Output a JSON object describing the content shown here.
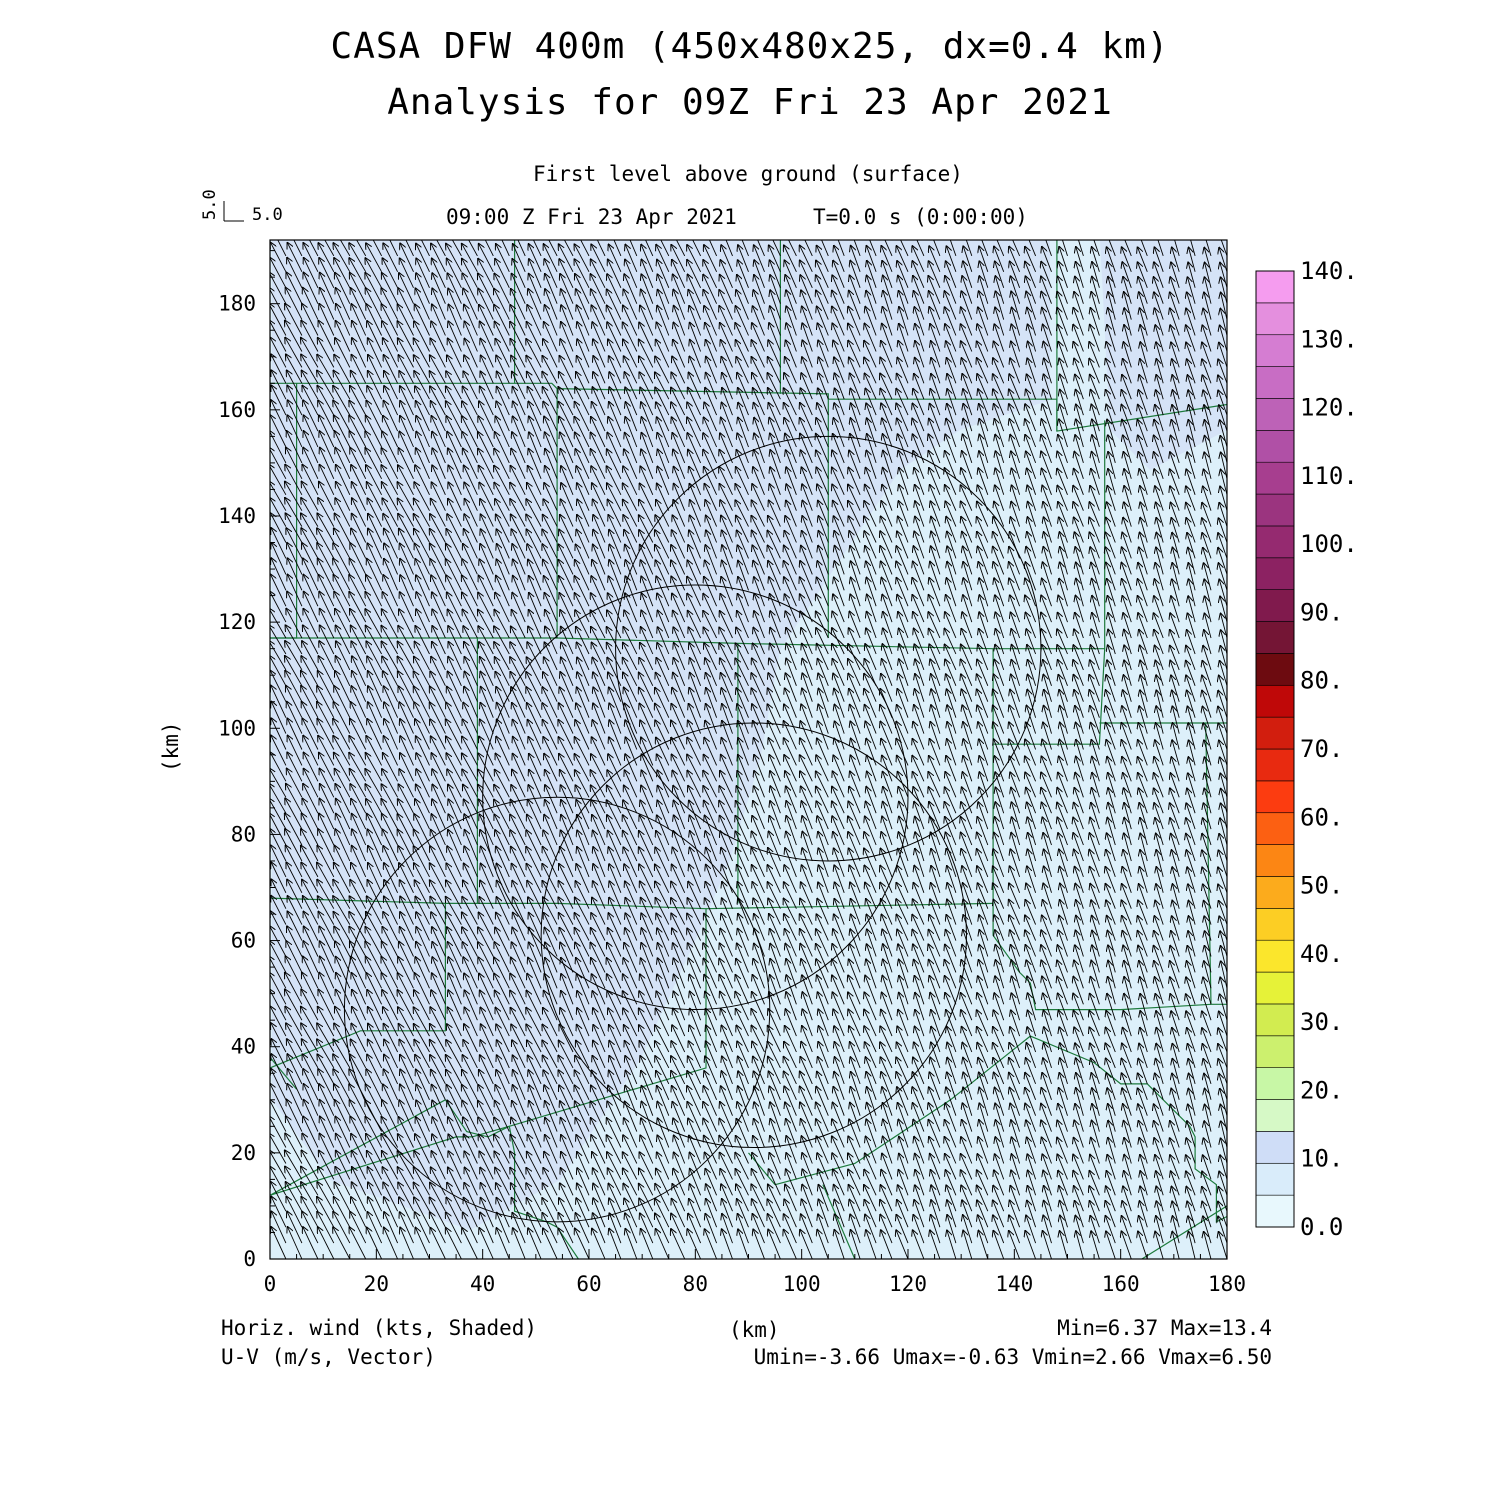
{
  "header": {
    "title_line1": "CASA DFW 400m (450x480x25, dx=0.4 km)",
    "title_line2": "Analysis for 09Z Fri 23 Apr 2021",
    "level": "First level above ground (surface)",
    "valid_time": "09:00 Z Fri 23 Apr 2021",
    "model_time": "T=0.0 s (0:00:00)"
  },
  "ref_vector": {
    "u": "5.0",
    "v": "5.0"
  },
  "footer": {
    "left_line1": "Horiz. wind (kts, Shaded)",
    "left_line2": "U-V (m/s, Vector)",
    "center": "(km)",
    "right_line1": "Min=6.37 Max=13.4",
    "right_line2": "Umin=-3.66 Umax=-0.63 Vmin=2.66 Vmax=6.50"
  },
  "colors": {
    "county_lines": "#1d7a3c",
    "field_light": "#ddf0fa",
    "field_mid": "#d4e1f6"
  },
  "chart_data": {
    "type": "heatmap",
    "xlabel": "(km)",
    "ylabel": "(km)",
    "xlim": [
      0,
      180
    ],
    "ylim": [
      0,
      192
    ],
    "xticks": [
      0,
      20,
      40,
      60,
      80,
      100,
      120,
      140,
      160,
      180
    ],
    "yticks": [
      0,
      20,
      40,
      60,
      80,
      100,
      120,
      140,
      160,
      180
    ],
    "shading_range_kts": [
      6.37,
      13.4
    ],
    "vector_u_range": [
      -3.66,
      -0.63
    ],
    "vector_v_range": [
      2.66,
      6.5
    ],
    "radar_rings": [
      {
        "cx": 54,
        "cy": 47,
        "r": 40
      },
      {
        "cx": 80,
        "cy": 87,
        "r": 40
      },
      {
        "cx": 91,
        "cy": 61,
        "r": 40
      },
      {
        "cx": 105,
        "cy": 115,
        "r": 40
      }
    ],
    "colorbar": {
      "min": 0,
      "max": 140,
      "step": 5,
      "labels": [
        "0.0",
        "10.",
        "20.",
        "30.",
        "40.",
        "50.",
        "60.",
        "70.",
        "80.",
        "90.",
        "100.",
        "110.",
        "120.",
        "130.",
        "140."
      ],
      "colors": [
        "#e8f8fd",
        "#d9ecfa",
        "#cfddf7",
        "#d6f9c6",
        "#c8f7a6",
        "#ccf06e",
        "#d2ec50",
        "#e6f238",
        "#fbe62c",
        "#fcce24",
        "#fcab1c",
        "#fc8614",
        "#fc6012",
        "#fc3c10",
        "#e82a10",
        "#d21e0e",
        "#bf0808",
        "#6d0b10",
        "#741535",
        "#801a4d",
        "#8c2262",
        "#952a70",
        "#9b347f",
        "#a73e8f",
        "#b050a6",
        "#bd62b7",
        "#c86dc4",
        "#d57dd2",
        "#e48fde",
        "#f59cef"
      ]
    }
  }
}
